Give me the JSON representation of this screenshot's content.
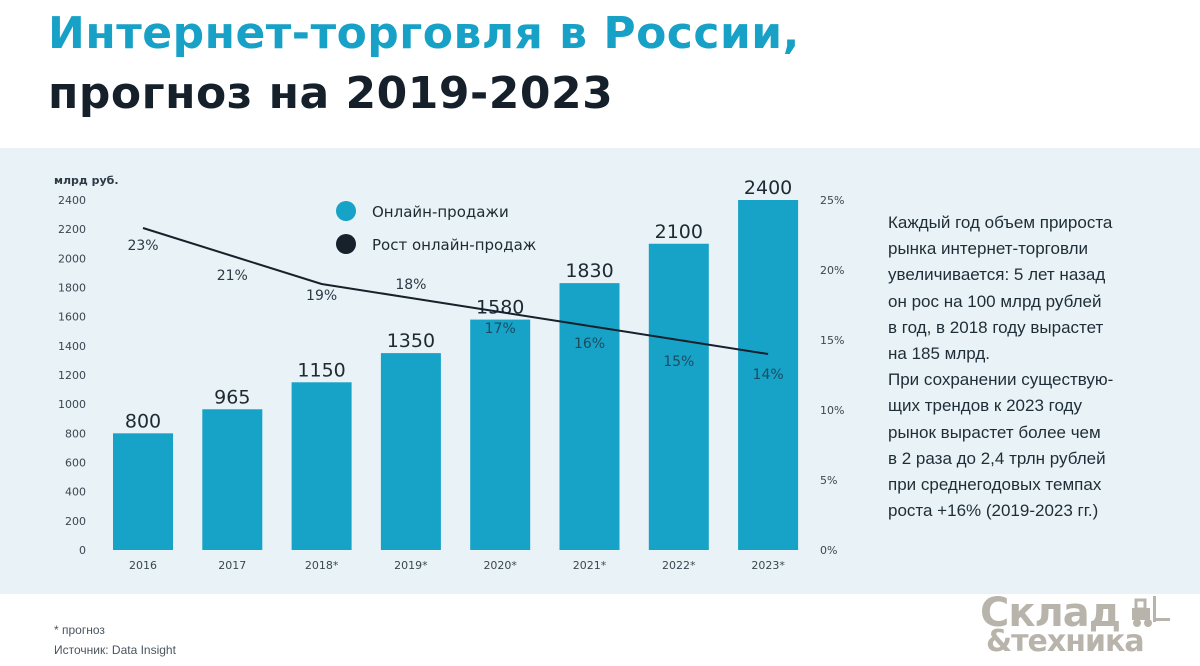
{
  "header": {
    "title_line1": "Интернет-торговля в России,",
    "title_line2": "прогноз на 2019-2023"
  },
  "colors": {
    "title_accent": "#17a1c6",
    "title_dark": "#15202b",
    "bar": "#17a2c7",
    "line": "#16212c",
    "panel": "#e9f2f6"
  },
  "chart_data": {
    "type": "bar",
    "ylabel": "млрд руб.",
    "categories": [
      "2016",
      "2017",
      "2018*",
      "2019*",
      "2020*",
      "2021*",
      "2022*",
      "2023*"
    ],
    "series": [
      {
        "name": "Онлайн-продажи",
        "type": "bar",
        "axis": "left",
        "values": [
          800,
          965,
          1150,
          1350,
          1580,
          1830,
          2100,
          2400
        ]
      },
      {
        "name": "Рост онлайн-продаж",
        "type": "line",
        "axis": "right",
        "values": [
          23,
          21,
          19,
          18,
          17,
          16,
          15,
          14
        ],
        "labels": [
          "23%",
          "21%",
          "19%",
          "18%",
          "17%",
          "16%",
          "15%",
          "14%"
        ]
      }
    ],
    "ylim": [
      0,
      2400
    ],
    "y2lim": [
      0,
      25
    ],
    "y_ticks": [
      "0",
      "200",
      "400",
      "600",
      "800",
      "1000",
      "1200",
      "1400",
      "1600",
      "1800",
      "2000",
      "2200",
      "2400"
    ],
    "y2_ticks": [
      "0%",
      "5%",
      "10%",
      "15%",
      "20%",
      "25%"
    ],
    "grid": false,
    "legend": "top-center"
  },
  "description": "Каждый год объем прироста\nрынка интернет-торговли\nувеличивается: 5 лет назад\nон рос на 100 млрд рублей\nв год, в 2018 году вырастет\nна 185 млрд.\nПри сохранении существую-\nщих трендов  к 2023 году\nрынок вырастет более чем\nв 2 раза до  2,4 трлн рублей\nпри среднегодовых темпах\nроста +16% (2019-2023 гг.)",
  "footer": {
    "note": "* прогноз",
    "source": "Источник: Data Insight"
  },
  "logo": {
    "line1": "Склад",
    "line2": "&техника",
    "icon": "forklift-icon"
  }
}
